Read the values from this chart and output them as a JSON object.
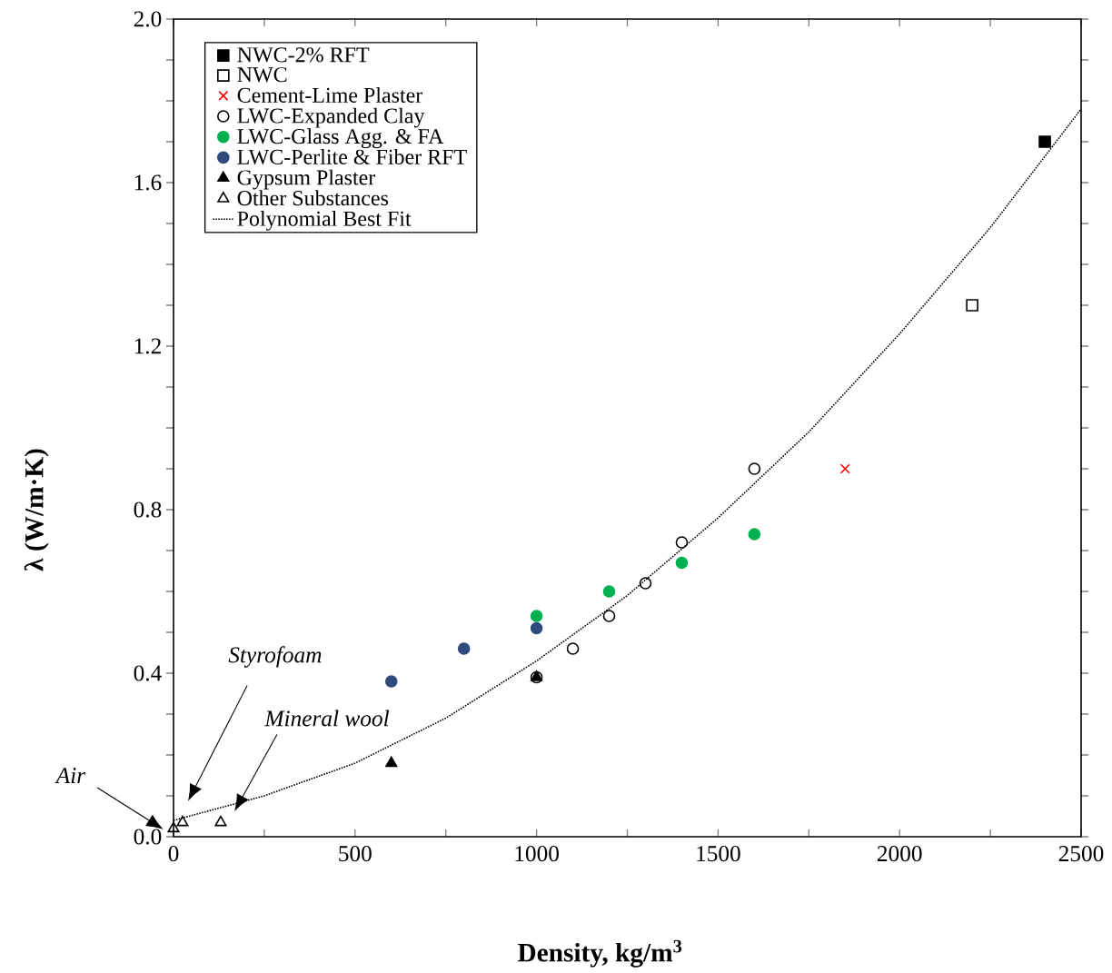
{
  "chart_data": {
    "type": "scatter",
    "xlabel": "Density, kg/m$^{3}$",
    "ylabel": "λ (W/m·K)",
    "xlim": [
      0,
      2500
    ],
    "ylim": [
      0,
      2.0
    ],
    "xticks": [
      0,
      {
        "value": 250,
        "label": null
      },
      500,
      {
        "value": 750,
        "label": null
      },
      1000,
      {
        "value": 1250,
        "label": null
      },
      1500,
      {
        "value": 1750,
        "label": null
      },
      2000,
      {
        "value": 2250,
        "label": null
      },
      2500
    ],
    "yticks": [
      {
        "value": 0,
        "label": "0.0"
      },
      {
        "value": 0.1,
        "label": null
      },
      {
        "value": 0.2,
        "label": null
      },
      {
        "value": 0.3,
        "label": null
      },
      0.4,
      {
        "value": 0.5,
        "label": null
      },
      {
        "value": 0.6,
        "label": null
      },
      {
        "value": 0.7,
        "label": null
      },
      0.8,
      {
        "value": 0.9,
        "label": null
      },
      {
        "value": 1.0,
        "label": null
      },
      {
        "value": 1.1,
        "label": null
      },
      1.2,
      {
        "value": 1.3,
        "label": null
      },
      {
        "value": 1.4,
        "label": null
      },
      {
        "value": 1.5,
        "label": null
      },
      1.6,
      {
        "value": 1.7,
        "label": null
      },
      {
        "value": 1.8,
        "label": null
      },
      {
        "value": 1.9,
        "label": null
      },
      {
        "value": 2.0,
        "label": "2.0"
      }
    ],
    "grid": false,
    "legend": "top left",
    "series": [
      {
        "name": "NWC-2% RFT",
        "color": "#000000",
        "marker": "square",
        "x": [
          2400
        ],
        "values": [
          1.7
        ]
      },
      {
        "name": "NWC",
        "color": "#000000",
        "marker": "square",
        "x": [
          2200
        ],
        "values": [
          1.3
        ]
      },
      {
        "name": "Cement-Lime Plaster",
        "color": "#ff0000",
        "marker": "cross",
        "x": [
          1850
        ],
        "values": [
          0.9
        ]
      },
      {
        "name": "LWC-Expanded Clay",
        "color": "#000000",
        "marker": "circle",
        "x": [
          1000,
          1100,
          1200,
          1300,
          1400,
          1600
        ],
        "values": [
          0.39,
          0.46,
          0.54,
          0.62,
          0.72,
          0.9
        ]
      },
      {
        "name": "LWC-Glass Agg. & FA",
        "color": "#00b050",
        "marker": "circle",
        "x": [
          1000,
          1200,
          1400,
          1600
        ],
        "values": [
          0.54,
          0.6,
          0.67,
          0.74
        ]
      },
      {
        "name": "LWC-Perlite & Fiber RFT",
        "color": "#2f4b7c",
        "marker": "circle",
        "x": [
          600,
          800,
          1000
        ],
        "values": [
          0.38,
          0.46,
          0.51
        ]
      },
      {
        "name": "Gypsum Plaster",
        "color": "#000000",
        "marker": "triangle",
        "x": [
          600,
          1000
        ],
        "values": [
          0.18,
          0.39
        ]
      },
      {
        "name": "Other Substances",
        "color": "#000000",
        "marker": "triangle",
        "x": [
          0,
          25,
          130
        ],
        "values": [
          0.02,
          0.035,
          0.035
        ]
      },
      {
        "name": "Polynomial Best Fit",
        "type": "line",
        "color": "#000000",
        "marker": "none",
        "line_style": "dotted",
        "x": [
          0,
          250,
          500,
          750,
          1000,
          1250,
          1500,
          1750,
          2000,
          2250,
          2500
        ],
        "values": [
          0.04,
          0.1,
          0.18,
          0.29,
          0.43,
          0.59,
          0.78,
          0.99,
          1.23,
          1.49,
          1.78
        ]
      }
    ],
    "annotations": [
      "Air",
      "Styrofoam",
      "Mineral wool"
    ]
  }
}
